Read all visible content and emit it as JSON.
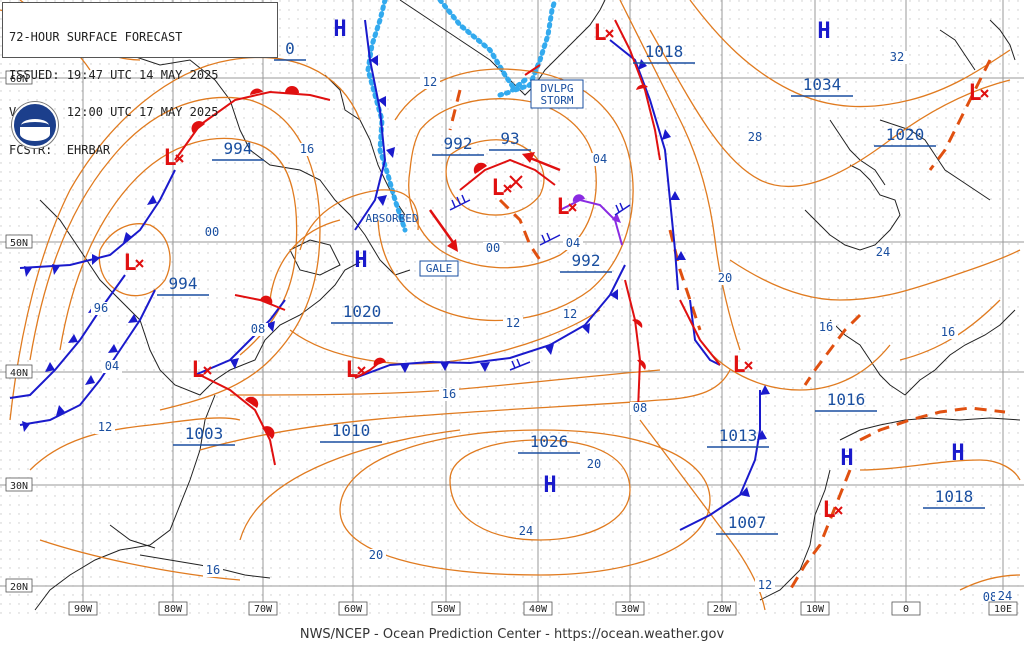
{
  "header": {
    "title": "72-HOUR SURFACE FORECAST",
    "issued": "ISSUED: 19:47 UTC 14 MAY 2025",
    "valid": "VALID:  12:00 UTC 17 MAY 2025",
    "forecaster": "FCSTR:  EHRBAR"
  },
  "footer": "NWS/NCEP - Ocean Prediction Center - https://ocean.weather.gov",
  "lat_labels": [
    "60N",
    "50N",
    "40N",
    "30N",
    "20N"
  ],
  "lon_labels": [
    "90W",
    "80W",
    "70W",
    "60W",
    "50W",
    "40W",
    "30W",
    "20W",
    "10W",
    "0",
    "10E"
  ],
  "systems": {
    "highs": [
      "H",
      "H",
      "H",
      "H",
      "H",
      "H"
    ],
    "lows": [
      "L",
      "L",
      "L",
      "L",
      "L",
      "L",
      "L",
      "L",
      "L",
      "L"
    ],
    "pressures": [
      "1018",
      "1034",
      "1020",
      "994",
      "992",
      "93",
      "994",
      "992",
      "1020",
      "1003",
      "1010",
      "1026",
      "1013",
      "1016",
      "1018",
      "1007",
      "0"
    ],
    "annotations": [
      "DVLPG STORM",
      "ABSORBED",
      "GALE"
    ]
  },
  "isobar_labels": [
    "12",
    "16",
    "00",
    "04",
    "12",
    "08",
    "96",
    "04",
    "12",
    "16",
    "00",
    "04",
    "12",
    "08",
    "20",
    "28",
    "32",
    "24",
    "16",
    "16",
    "20",
    "24",
    "20",
    "16",
    "12",
    "08",
    "24"
  ],
  "colors": {
    "isobar": "#e07b20",
    "cold_front": "#1a1acc",
    "warm_front": "#e01010",
    "occluded_front": "#8a2be2",
    "trough": "#e05010",
    "coast": "#222222",
    "ice": "#33aaee",
    "label": "#1a4fa0"
  }
}
